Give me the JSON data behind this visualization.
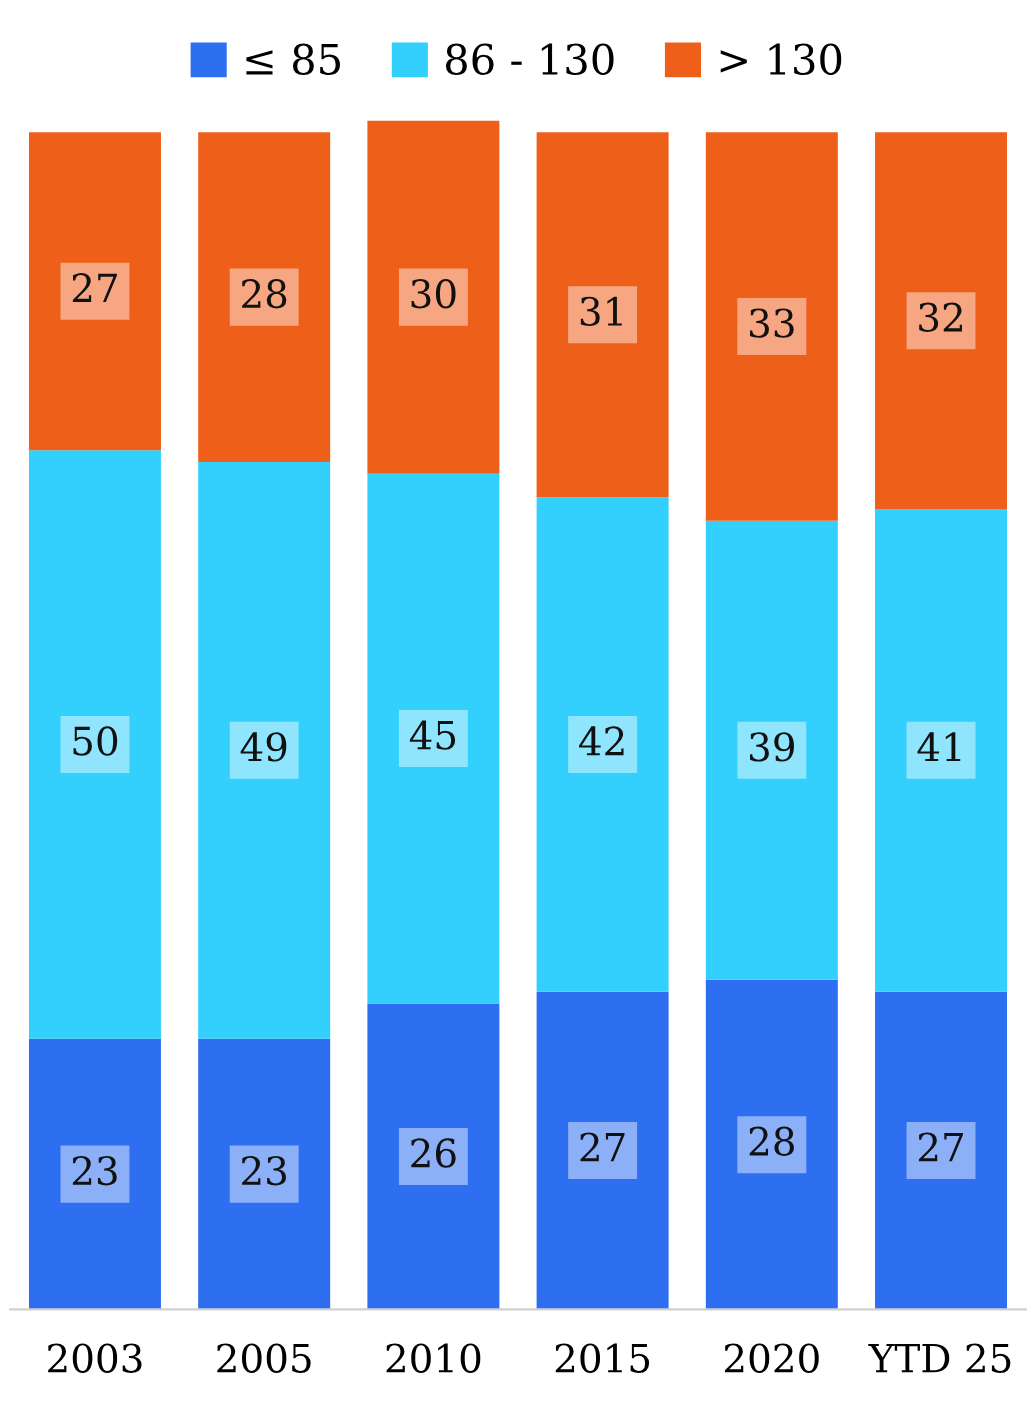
{
  "chart_data": {
    "type": "bar",
    "stacked": true,
    "data_labels": true,
    "legend": "top",
    "grid": false,
    "tick_labels": "x",
    "categories": [
      "2003",
      "2005",
      "2010",
      "2015",
      "2020",
      "YTD 25"
    ],
    "ylim": [
      0,
      101
    ],
    "series": [
      {
        "name": "≤ 85",
        "color": "#2e6ff2",
        "values": [
          23,
          23,
          26,
          27,
          28,
          27
        ]
      },
      {
        "name": "86 - 130",
        "color": "#33d0fd",
        "values": [
          50,
          49,
          45,
          42,
          39,
          41
        ]
      },
      {
        "name": "> 130",
        "color": "#ee5f1a",
        "values": [
          27,
          28,
          30,
          31,
          33,
          32
        ]
      }
    ]
  }
}
